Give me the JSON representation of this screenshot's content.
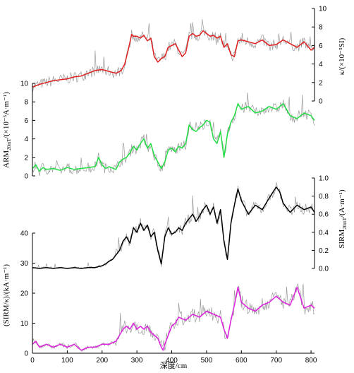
{
  "chart_data": [
    {
      "type": "line",
      "id": "kappa",
      "ylabel": "κ/(×10⁻⁵SI)",
      "y_axis_side": "right",
      "ylim": [
        0,
        10
      ],
      "yticks": [
        0,
        2,
        4,
        6,
        8,
        10
      ],
      "color": "#e02020",
      "raw_color": "#9a9a9a",
      "series": [
        {
          "x": [
            0,
            20,
            40,
            60,
            80,
            100,
            120,
            140,
            160,
            180,
            200,
            220,
            240,
            255,
            265,
            275,
            285,
            290,
            300,
            310,
            320,
            330,
            340,
            350,
            360,
            370,
            380,
            390,
            400,
            410,
            420,
            430,
            440,
            450,
            460,
            470,
            480,
            490,
            500,
            510,
            520,
            530,
            540,
            550,
            560,
            570,
            580,
            590,
            600,
            620,
            640,
            660,
            680,
            700,
            720,
            740,
            760,
            780,
            800,
            810
          ],
          "y": [
            1.5,
            1.8,
            2.0,
            2.2,
            2.3,
            2.4,
            2.6,
            2.7,
            3.0,
            3.3,
            3.4,
            3.2,
            3.0,
            3.3,
            4.0,
            5.5,
            7.2,
            7.0,
            7.0,
            6.8,
            7.1,
            6.5,
            6.8,
            4.8,
            4.2,
            4.6,
            4.8,
            5.8,
            6.0,
            6.2,
            5.5,
            4.8,
            5.2,
            7.0,
            7.3,
            7.0,
            7.1,
            7.6,
            7.3,
            7.0,
            7.1,
            6.8,
            7.0,
            5.8,
            6.2,
            5.0,
            4.8,
            6.5,
            6.6,
            6.4,
            6.2,
            6.6,
            6.0,
            6.1,
            6.6,
            6.2,
            5.8,
            6.4,
            5.5,
            5.8
          ]
        }
      ]
    },
    {
      "type": "line",
      "id": "arm",
      "ylabel": "ARM20mT/(×10⁻³A·m⁻¹)",
      "ylabel_main": "ARM",
      "ylabel_sub": "20mT",
      "ylabel_rest": "/(×10⁻³A·m⁻¹)",
      "y_axis_side": "left",
      "ylim": [
        0,
        10
      ],
      "yticks": [
        0,
        2,
        4,
        6,
        8,
        10
      ],
      "color": "#22dd44",
      "raw_color": "#9a9a9a",
      "series": [
        {
          "x": [
            0,
            10,
            20,
            30,
            40,
            60,
            80,
            100,
            120,
            140,
            160,
            180,
            190,
            200,
            210,
            220,
            240,
            250,
            260,
            270,
            280,
            290,
            300,
            310,
            320,
            330,
            340,
            350,
            360,
            370,
            380,
            390,
            400,
            410,
            420,
            430,
            440,
            450,
            460,
            470,
            480,
            490,
            500,
            510,
            520,
            530,
            540,
            550,
            560,
            570,
            580,
            590,
            600,
            620,
            640,
            660,
            680,
            700,
            720,
            740,
            760,
            780,
            800,
            810
          ],
          "y": [
            0.8,
            1.2,
            0.5,
            0.9,
            0.7,
            0.8,
            0.6,
            0.9,
            0.7,
            0.8,
            0.9,
            1.0,
            2.0,
            1.2,
            0.8,
            1.0,
            0.7,
            1.5,
            1.8,
            2.0,
            2.5,
            3.2,
            2.8,
            3.5,
            4.0,
            3.0,
            3.5,
            2.2,
            1.5,
            0.8,
            1.5,
            2.8,
            3.0,
            2.6,
            3.2,
            3.0,
            3.5,
            5.5,
            5.0,
            4.8,
            5.2,
            5.5,
            6.0,
            5.8,
            4.0,
            3.5,
            4.8,
            2.0,
            4.5,
            5.8,
            6.5,
            7.8,
            7.2,
            7.5,
            6.8,
            7.0,
            7.5,
            7.2,
            7.8,
            6.5,
            6.2,
            6.8,
            6.5,
            6.0
          ]
        }
      ]
    },
    {
      "type": "line",
      "id": "sirm",
      "ylabel": "SIRM20mT/(A·m⁻¹)",
      "ylabel_main": "SIRM",
      "ylabel_sub": "20mT",
      "ylabel_rest": "/(A·m⁻¹)",
      "y_axis_side": "right",
      "ylim": [
        0,
        1.0
      ],
      "yticks": [
        0.0,
        0.2,
        0.4,
        0.6,
        0.8,
        1.0
      ],
      "color": "#000000",
      "raw_color": "#9a9a9a",
      "series": [
        {
          "x": [
            0,
            20,
            40,
            60,
            80,
            100,
            120,
            140,
            160,
            180,
            200,
            210,
            220,
            230,
            240,
            250,
            260,
            270,
            280,
            290,
            300,
            310,
            320,
            330,
            340,
            350,
            360,
            370,
            380,
            390,
            400,
            410,
            420,
            430,
            440,
            450,
            460,
            470,
            480,
            490,
            500,
            510,
            520,
            530,
            540,
            550,
            560,
            570,
            580,
            590,
            600,
            620,
            640,
            660,
            680,
            700,
            710,
            720,
            740,
            760,
            780,
            800,
            810
          ],
          "y": [
            0.01,
            0.0,
            0.01,
            0.0,
            0.01,
            0.0,
            0.01,
            0.0,
            0.01,
            0.01,
            0.03,
            0.05,
            0.08,
            0.1,
            0.15,
            0.2,
            0.3,
            0.35,
            0.28,
            0.45,
            0.4,
            0.5,
            0.42,
            0.48,
            0.35,
            0.4,
            0.2,
            0.05,
            0.35,
            0.45,
            0.38,
            0.4,
            0.45,
            0.42,
            0.5,
            0.55,
            0.6,
            0.52,
            0.58,
            0.65,
            0.7,
            0.6,
            0.68,
            0.5,
            0.65,
            0.3,
            0.1,
            0.5,
            0.7,
            0.88,
            0.75,
            0.6,
            0.7,
            0.65,
            0.78,
            0.9,
            0.85,
            0.72,
            0.62,
            0.7,
            0.65,
            0.68,
            0.62
          ]
        }
      ]
    },
    {
      "type": "line",
      "id": "sirm_kappa",
      "ylabel": "(SIRM/κ)/(kA·m⁻¹)",
      "y_axis_side": "left",
      "xlabel": "深度/cm",
      "xlim": [
        0,
        810
      ],
      "xticks": [
        0,
        100,
        200,
        300,
        400,
        500,
        600,
        700,
        800
      ],
      "ylim": [
        0,
        40
      ],
      "yticks": [
        0,
        10,
        20,
        30,
        40
      ],
      "color": "#dd22dd",
      "raw_color": "#9a9a9a",
      "series": [
        {
          "x": [
            0,
            10,
            20,
            40,
            60,
            80,
            100,
            120,
            140,
            160,
            180,
            200,
            220,
            240,
            250,
            260,
            270,
            280,
            290,
            300,
            310,
            320,
            330,
            340,
            350,
            360,
            370,
            375,
            380,
            390,
            400,
            410,
            420,
            440,
            460,
            480,
            500,
            520,
            540,
            550,
            560,
            570,
            580,
            590,
            600,
            620,
            640,
            660,
            680,
            700,
            720,
            740,
            760,
            780,
            800,
            810
          ],
          "y": [
            3,
            4,
            2,
            3,
            2,
            3,
            2,
            3,
            1,
            2,
            2,
            3,
            3,
            4,
            6,
            8,
            9,
            8,
            10,
            8,
            9,
            8,
            9,
            7,
            6,
            5,
            2,
            1,
            3,
            6,
            9,
            10,
            12,
            11,
            13,
            12,
            14,
            13,
            12,
            8,
            5,
            11,
            16,
            22,
            17,
            15,
            14,
            16,
            17,
            19,
            17,
            16,
            22,
            15,
            16,
            15
          ]
        }
      ]
    }
  ]
}
